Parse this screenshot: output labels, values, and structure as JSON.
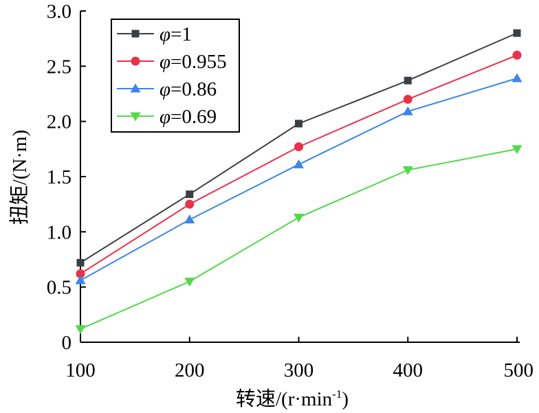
{
  "chart_data": {
    "type": "line",
    "xlabel": "转速/(r·min",
    "xlabel_sup": "-1",
    "xlabel_end": ")",
    "ylabel": "扭矩/(N·m)",
    "xlim": [
      100,
      500
    ],
    "ylim": [
      0,
      3.0
    ],
    "x_ticks": [
      "100",
      "200",
      "300",
      "400",
      "500"
    ],
    "y_ticks": [
      "0",
      "0.5",
      "1.0",
      "1.5",
      "2.0",
      "2.5",
      "3.0"
    ],
    "x": [
      100,
      200,
      300,
      400,
      500
    ],
    "legend_position": "top-left",
    "grid": false,
    "series": [
      {
        "name_symbol": "φ",
        "name_value": "=1",
        "color": "#3a3f44",
        "marker": "square",
        "values": [
          0.72,
          1.34,
          1.98,
          2.37,
          2.8
        ]
      },
      {
        "name_symbol": "φ",
        "name_value": "=0.955",
        "color": "#e8324a",
        "marker": "circle",
        "values": [
          0.62,
          1.25,
          1.77,
          2.2,
          2.6
        ]
      },
      {
        "name_symbol": "φ",
        "name_value": "=0.86",
        "color": "#3b86e6",
        "marker": "triangle-up",
        "values": [
          0.56,
          1.11,
          1.61,
          2.09,
          2.39
        ]
      },
      {
        "name_symbol": "φ",
        "name_value": "=0.69",
        "color": "#52d94a",
        "marker": "triangle-down",
        "values": [
          0.12,
          0.55,
          1.13,
          1.56,
          1.75
        ]
      }
    ]
  }
}
